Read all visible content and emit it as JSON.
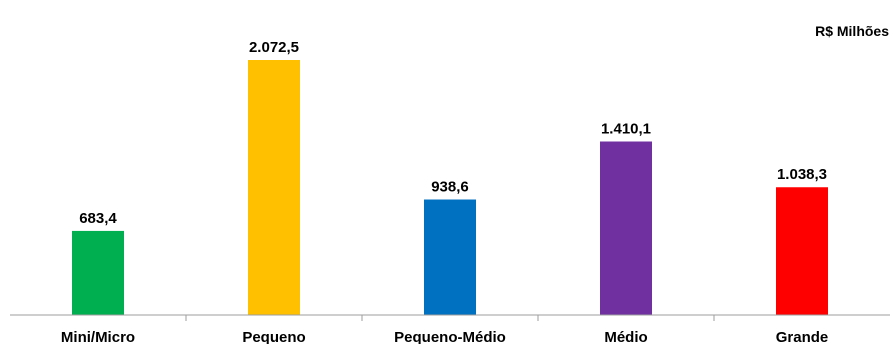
{
  "chart_data": {
    "type": "bar",
    "unit_label": "R$ Milhões",
    "categories": [
      "Mini/Micro",
      "Pequeno",
      "Pequeno-Médio",
      "Médio",
      "Grande"
    ],
    "values": [
      683.4,
      2072.5,
      938.6,
      1410.1,
      1038.3
    ],
    "value_labels": [
      "683,4",
      "2.072,5",
      "938,6",
      "1.410,1",
      "1.038,3"
    ],
    "colors": [
      "#00b050",
      "#ffc000",
      "#0070c0",
      "#7030a0",
      "#ff0000"
    ],
    "grid": false,
    "ylim": [
      0,
      2400
    ]
  }
}
